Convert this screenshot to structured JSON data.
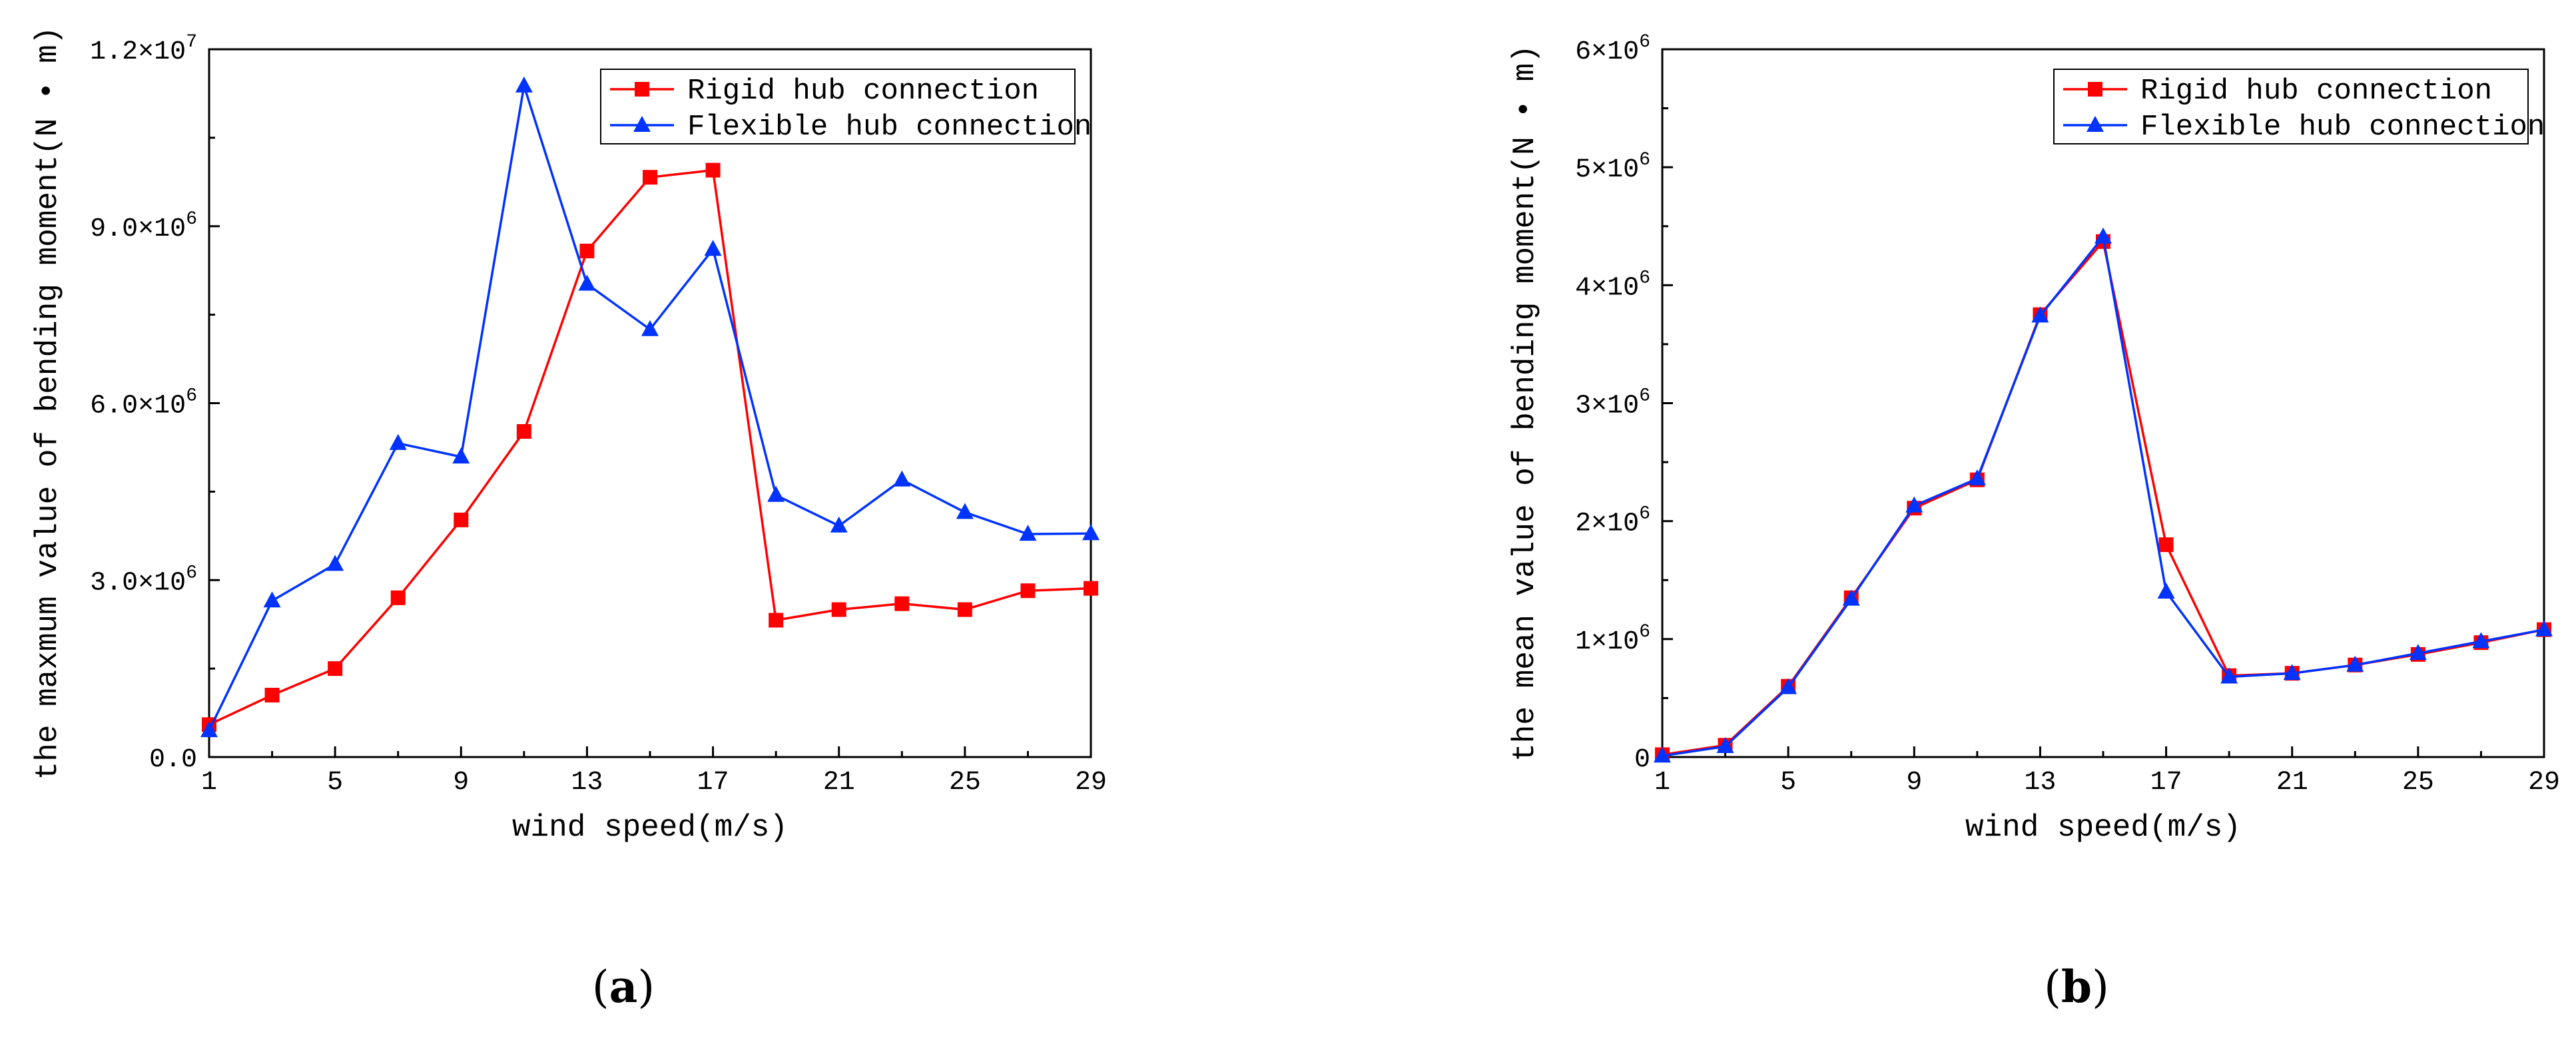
{
  "chart_data": [
    {
      "type": "line",
      "panel_label": "(a)",
      "xlabel": "wind speed(m/s)",
      "ylabel": "the maxmum value of bending moment(N • m)",
      "xlim": [
        1,
        29
      ],
      "ylim": [
        0,
        12000000
      ],
      "xticks": [
        1,
        5,
        9,
        13,
        17,
        21,
        25,
        29
      ],
      "yticks": [
        {
          "value": 0,
          "mant": "0.0",
          "exp": ""
        },
        {
          "value": 3000000,
          "mant": "3.0×10",
          "exp": "6"
        },
        {
          "value": 6000000,
          "mant": "6.0×10",
          "exp": "6"
        },
        {
          "value": 9000000,
          "mant": "9.0×10",
          "exp": "6"
        },
        {
          "value": 12000000,
          "mant": "1.2×10",
          "exp": "7"
        }
      ],
      "legend_position": "top-right",
      "x": [
        1,
        3,
        5,
        7,
        9,
        11,
        13,
        15,
        17,
        19,
        21,
        23,
        25,
        27,
        29
      ],
      "series": [
        {
          "name": "Rigid hub connection",
          "color": "#ff0000",
          "marker": "square",
          "values": [
            550000,
            1050000,
            1500000,
            2700000,
            4020000,
            5520000,
            8580000,
            9830000,
            9950000,
            2320000,
            2500000,
            2600000,
            2500000,
            2820000,
            2860000
          ]
        },
        {
          "name": "Flexible hub connection",
          "color": "#0033ff",
          "marker": "triangle",
          "values": [
            450000,
            2650000,
            3270000,
            5320000,
            5090000,
            11380000,
            8020000,
            7250000,
            8610000,
            4440000,
            3920000,
            4700000,
            4150000,
            3780000,
            3790000
          ]
        }
      ]
    },
    {
      "type": "line",
      "panel_label": "(b)",
      "xlabel": "wind speed(m/s)",
      "ylabel": "the mean value of bending moment(N • m)",
      "xlim": [
        1,
        29
      ],
      "ylim": [
        0,
        6000000
      ],
      "xticks": [
        1,
        5,
        9,
        13,
        17,
        21,
        25,
        29
      ],
      "yticks": [
        {
          "value": 0,
          "mant": "0",
          "exp": ""
        },
        {
          "value": 1000000,
          "mant": "1×10",
          "exp": "6"
        },
        {
          "value": 2000000,
          "mant": "2×10",
          "exp": "6"
        },
        {
          "value": 3000000,
          "mant": "3×10",
          "exp": "6"
        },
        {
          "value": 4000000,
          "mant": "4×10",
          "exp": "6"
        },
        {
          "value": 5000000,
          "mant": "5×10",
          "exp": "6"
        },
        {
          "value": 6000000,
          "mant": "6×10",
          "exp": "6"
        }
      ],
      "legend_position": "top-right",
      "x": [
        1,
        3,
        5,
        7,
        9,
        11,
        13,
        15,
        17,
        19,
        21,
        23,
        25,
        27,
        29
      ],
      "series": [
        {
          "name": "Rigid hub connection",
          "color": "#ff0000",
          "marker": "square",
          "values": [
            20000,
            100000,
            600000,
            1350000,
            2110000,
            2350000,
            3750000,
            4370000,
            1800000,
            690000,
            710000,
            780000,
            870000,
            970000,
            1080000
          ]
        },
        {
          "name": "Flexible hub connection",
          "color": "#0033ff",
          "marker": "triangle",
          "values": [
            10000,
            90000,
            590000,
            1340000,
            2130000,
            2360000,
            3740000,
            4410000,
            1400000,
            680000,
            710000,
            780000,
            880000,
            980000,
            1080000
          ]
        }
      ]
    }
  ]
}
